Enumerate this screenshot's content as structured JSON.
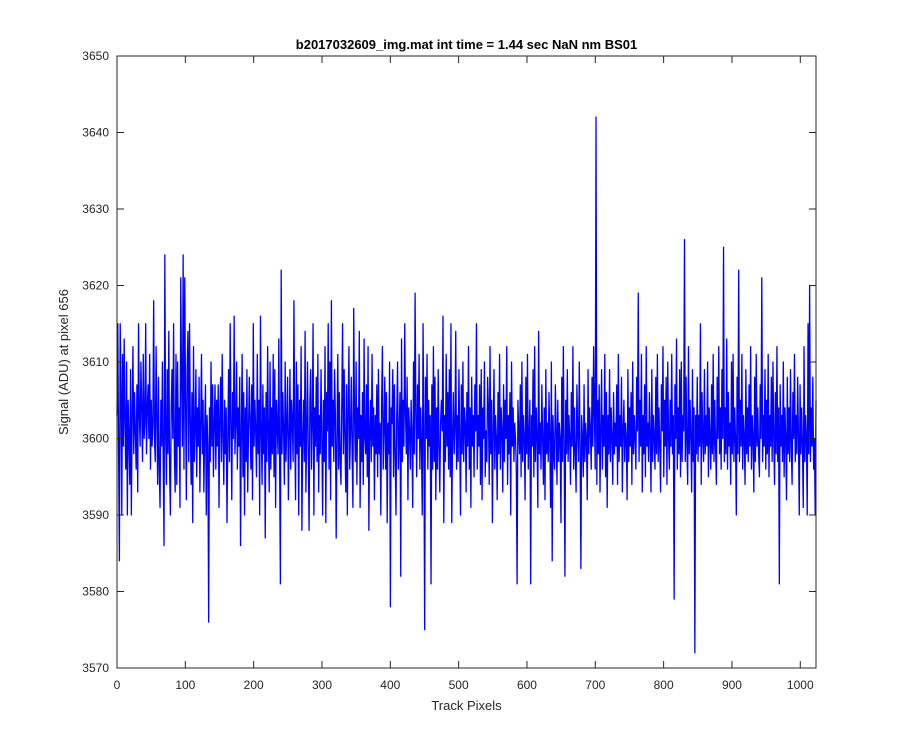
{
  "chart_data": {
    "type": "line",
    "title": "b2017032609_img.mat int time = 1.44 sec  NaN nm BS01",
    "xlabel": "Track Pixels",
    "ylabel": "Signal (ADU) at pixel 656",
    "xlim": [
      0,
      1023
    ],
    "ylim": [
      3570,
      3650
    ],
    "xticks": [
      0,
      100,
      200,
      300,
      400,
      500,
      600,
      700,
      800,
      900,
      1000
    ],
    "yticks": [
      3570,
      3580,
      3590,
      3600,
      3610,
      3620,
      3630,
      3640,
      3650
    ],
    "grid": false,
    "legend": "none",
    "series_color": "#0000ff",
    "series": [
      {
        "values": [
          3603,
          3615,
          3598,
          3584,
          3615,
          3607,
          3590,
          3611,
          3599,
          3613,
          3602,
          3596,
          3610,
          3590,
          3605,
          3600,
          3594,
          3609,
          3590,
          3603,
          3612,
          3598,
          3606,
          3601,
          3596,
          3607,
          3593,
          3615,
          3603,
          3599,
          3610,
          3604,
          3597,
          3611,
          3600,
          3602,
          3615,
          3598,
          3604,
          3607,
          3600,
          3611,
          3596,
          3605,
          3599,
          3602,
          3618,
          3600,
          3597,
          3612,
          3603,
          3594,
          3608,
          3596,
          3591,
          3605,
          3599,
          3610,
          3597,
          3586,
          3624,
          3601,
          3594,
          3609,
          3598,
          3614,
          3596,
          3590,
          3604,
          3609,
          3600,
          3615,
          3598,
          3593,
          3611,
          3594,
          3610,
          3599,
          3604,
          3591,
          3621,
          3608,
          3599,
          3624,
          3596,
          3621,
          3605,
          3592,
          3609,
          3614,
          3597,
          3615,
          3602,
          3594,
          3606,
          3589,
          3612,
          3597,
          3601,
          3609,
          3595,
          3604,
          3599,
          3608,
          3593,
          3602,
          3611,
          3598,
          3605,
          3593,
          3601,
          3607,
          3590,
          3603,
          3599,
          3576,
          3604,
          3597,
          3610,
          3599,
          3607,
          3595,
          3602,
          3607,
          3596,
          3605,
          3599,
          3607,
          3591,
          3603,
          3608,
          3597,
          3611,
          3600,
          3594,
          3605,
          3598,
          3604,
          3589,
          3600,
          3609,
          3597,
          3615,
          3602,
          3592,
          3606,
          3600,
          3616,
          3598,
          3602,
          3610,
          3596,
          3604,
          3599,
          3608,
          3586,
          3601,
          3611,
          3595,
          3606,
          3590,
          3604,
          3597,
          3609,
          3593,
          3601,
          3608,
          3602,
          3596,
          3607,
          3592,
          3615,
          3599,
          3605,
          3601,
          3595,
          3611,
          3598,
          3605,
          3590,
          3616,
          3601,
          3594,
          3607,
          3598,
          3604,
          3587,
          3606,
          3597,
          3612,
          3600,
          3593,
          3610,
          3596,
          3604,
          3598,
          3611,
          3595,
          3609,
          3591,
          3605,
          3602,
          3598,
          3613,
          3597,
          3581,
          3622,
          3598,
          3606,
          3601,
          3594,
          3610,
          3597,
          3602,
          3608,
          3592,
          3600,
          3609,
          3596,
          3605,
          3602,
          3597,
          3618,
          3601,
          3592,
          3610,
          3598,
          3607,
          3590,
          3605,
          3599,
          3612,
          3588,
          3600,
          3605,
          3597,
          3614,
          3593,
          3601,
          3610,
          3598,
          3588,
          3605,
          3609,
          3596,
          3602,
          3615,
          3590,
          3604,
          3599,
          3608,
          3597,
          3611,
          3593,
          3603,
          3598,
          3609,
          3600,
          3590,
          3605,
          3597,
          3612,
          3589,
          3606,
          3601,
          3615,
          3596,
          3610,
          3592,
          3618,
          3599,
          3605,
          3597,
          3609,
          3603,
          3587,
          3600,
          3611,
          3596,
          3606,
          3597,
          3594,
          3604,
          3615,
          3598,
          3609,
          3600,
          3593,
          3607,
          3590,
          3604,
          3612,
          3596,
          3601,
          3608,
          3598,
          3591,
          3617,
          3603,
          3597,
          3610,
          3594,
          3604,
          3600,
          3614,
          3591,
          3603,
          3597,
          3606,
          3594,
          3613,
          3600,
          3598,
          3607,
          3595,
          3612,
          3588,
          3601,
          3605,
          3597,
          3611,
          3599,
          3604,
          3592,
          3603,
          3598,
          3607,
          3595,
          3609,
          3598,
          3602,
          3590,
          3605,
          3612,
          3596,
          3601,
          3608,
          3596,
          3606,
          3589,
          3602,
          3598,
          3610,
          3578,
          3604,
          3602,
          3609,
          3595,
          3607,
          3598,
          3590,
          3603,
          3610,
          3596,
          3600,
          3606,
          3582,
          3613,
          3597,
          3605,
          3599,
          3615,
          3603,
          3598,
          3608,
          3592,
          3604,
          3601,
          3596,
          3605,
          3600,
          3591,
          3610,
          3598,
          3619,
          3603,
          3595,
          3607,
          3600,
          3611,
          3596,
          3604,
          3599,
          3590,
          3615,
          3601,
          3575,
          3608,
          3600,
          3611,
          3596,
          3605,
          3599,
          3603,
          3581,
          3607,
          3596,
          3612,
          3597,
          3608,
          3592,
          3604,
          3596,
          3609,
          3599,
          3593,
          3602,
          3605,
          3601,
          3616,
          3589,
          3603,
          3597,
          3611,
          3599,
          3606,
          3596,
          3609,
          3595,
          3615,
          3589,
          3600,
          3606,
          3598,
          3601,
          3614,
          3596,
          3603,
          3597,
          3609,
          3600,
          3590,
          3607,
          3598,
          3610,
          3597,
          3604,
          3602,
          3593,
          3606,
          3599,
          3612,
          3596,
          3604,
          3591,
          3608,
          3599,
          3603,
          3595,
          3607,
          3601,
          3615,
          3596,
          3603,
          3599,
          3607,
          3594,
          3609,
          3592,
          3604,
          3600,
          3610,
          3595,
          3601,
          3597,
          3608,
          3604,
          3594,
          3612,
          3598,
          3605,
          3589,
          3601,
          3609,
          3596,
          3603,
          3600,
          3592,
          3606,
          3598,
          3611,
          3596,
          3604,
          3601,
          3593,
          3607,
          3597,
          3605,
          3600,
          3612,
          3594,
          3603,
          3598,
          3606,
          3590,
          3610,
          3599,
          3604,
          3597,
          3602,
          3600,
          3596,
          3581,
          3605,
          3601,
          3598,
          3607,
          3595,
          3610,
          3597,
          3603,
          3600,
          3592,
          3608,
          3598,
          3611,
          3596,
          3600,
          3605,
          3581,
          3603,
          3599,
          3609,
          3595,
          3612,
          3597,
          3604,
          3600,
          3591,
          3614,
          3598,
          3602,
          3596,
          3607,
          3600,
          3594,
          3604,
          3592,
          3609,
          3598,
          3602,
          3597,
          3606,
          3600,
          3591,
          3610,
          3584,
          3603,
          3598,
          3596,
          3607,
          3601,
          3594,
          3605,
          3597,
          3602,
          3600,
          3589,
          3608,
          3597,
          3612,
          3599,
          3582,
          3605,
          3598,
          3609,
          3597,
          3603,
          3600,
          3594,
          3606,
          3599,
          3612,
          3596,
          3604,
          3598,
          3593,
          3607,
          3601,
          3597,
          3610,
          3599,
          3583,
          3603,
          3600,
          3595,
          3607,
          3597,
          3602,
          3600,
          3592,
          3609,
          3598,
          3604,
          3601,
          3596,
          3608,
          3599,
          3612,
          3603,
          3596,
          3642,
          3594,
          3605,
          3598,
          3607,
          3593,
          3601,
          3609,
          3596,
          3603,
          3599,
          3611,
          3595,
          3606,
          3591,
          3603,
          3598,
          3609,
          3597,
          3604,
          3600,
          3594,
          3606,
          3598,
          3602,
          3599,
          3607,
          3594,
          3611,
          3597,
          3603,
          3599,
          3608,
          3593,
          3601,
          3605,
          3597,
          3602,
          3600,
          3592,
          3609,
          3597,
          3604,
          3599,
          3606,
          3594,
          3610,
          3598,
          3603,
          3600,
          3596,
          3608,
          3601,
          3619,
          3597,
          3605,
          3599,
          3611,
          3593,
          3603,
          3598,
          3607,
          3595,
          3612,
          3599,
          3602,
          3597,
          3606,
          3600,
          3593,
          3609,
          3597,
          3603,
          3600,
          3596,
          3608,
          3598,
          3611,
          3597,
          3604,
          3599,
          3593,
          3607,
          3601,
          3612,
          3595,
          3605,
          3599,
          3608,
          3594,
          3610,
          3600,
          3596,
          3605,
          3599,
          3611,
          3598,
          3603,
          3579,
          3607,
          3600,
          3613,
          3596,
          3604,
          3598,
          3609,
          3595,
          3610,
          3597,
          3603,
          3601,
          3626,
          3597,
          3608,
          3599,
          3594,
          3612,
          3598,
          3605,
          3600,
          3593,
          3609,
          3597,
          3604,
          3572,
          3603,
          3598,
          3608,
          3597,
          3603,
          3599,
          3615,
          3594,
          3606,
          3600,
          3597,
          3609,
          3598,
          3603,
          3599,
          3610,
          3595,
          3604,
          3600,
          3596,
          3607,
          3598,
          3611,
          3597,
          3605,
          3599,
          3594,
          3608,
          3600,
          3612,
          3598,
          3604,
          3596,
          3609,
          3600,
          3625,
          3597,
          3604,
          3598,
          3613,
          3596,
          3606,
          3599,
          3602,
          3594,
          3610,
          3598,
          3611,
          3597,
          3604,
          3600,
          3590,
          3608,
          3598,
          3622,
          3597,
          3605,
          3599,
          3611,
          3596,
          3603,
          3600,
          3594,
          3609,
          3598,
          3604,
          3597,
          3607,
          3599,
          3612,
          3596,
          3603,
          3600,
          3593,
          3608,
          3597,
          3611,
          3599,
          3604,
          3598,
          3595,
          3607,
          3600,
          3621,
          3597,
          3603,
          3599,
          3609,
          3596,
          3605,
          3598,
          3611,
          3595,
          3603,
          3599,
          3608,
          3597,
          3610,
          3600,
          3594,
          3606,
          3598,
          3612,
          3597,
          3604,
          3581,
          3607,
          3599,
          3603,
          3597,
          3610,
          3595,
          3604,
          3600,
          3592,
          3608,
          3598,
          3604,
          3597,
          3609,
          3599,
          3594,
          3606,
          3600,
          3611,
          3597,
          3603,
          3598,
          3608,
          3600,
          3590,
          3607,
          3598,
          3604,
          3599,
          3591,
          3612,
          3597,
          3603,
          3600,
          3590,
          3615,
          3598,
          3620,
          3597,
          3604,
          3599,
          3608,
          3596,
          3600,
          3590,
          3605
        ]
      }
    ]
  }
}
